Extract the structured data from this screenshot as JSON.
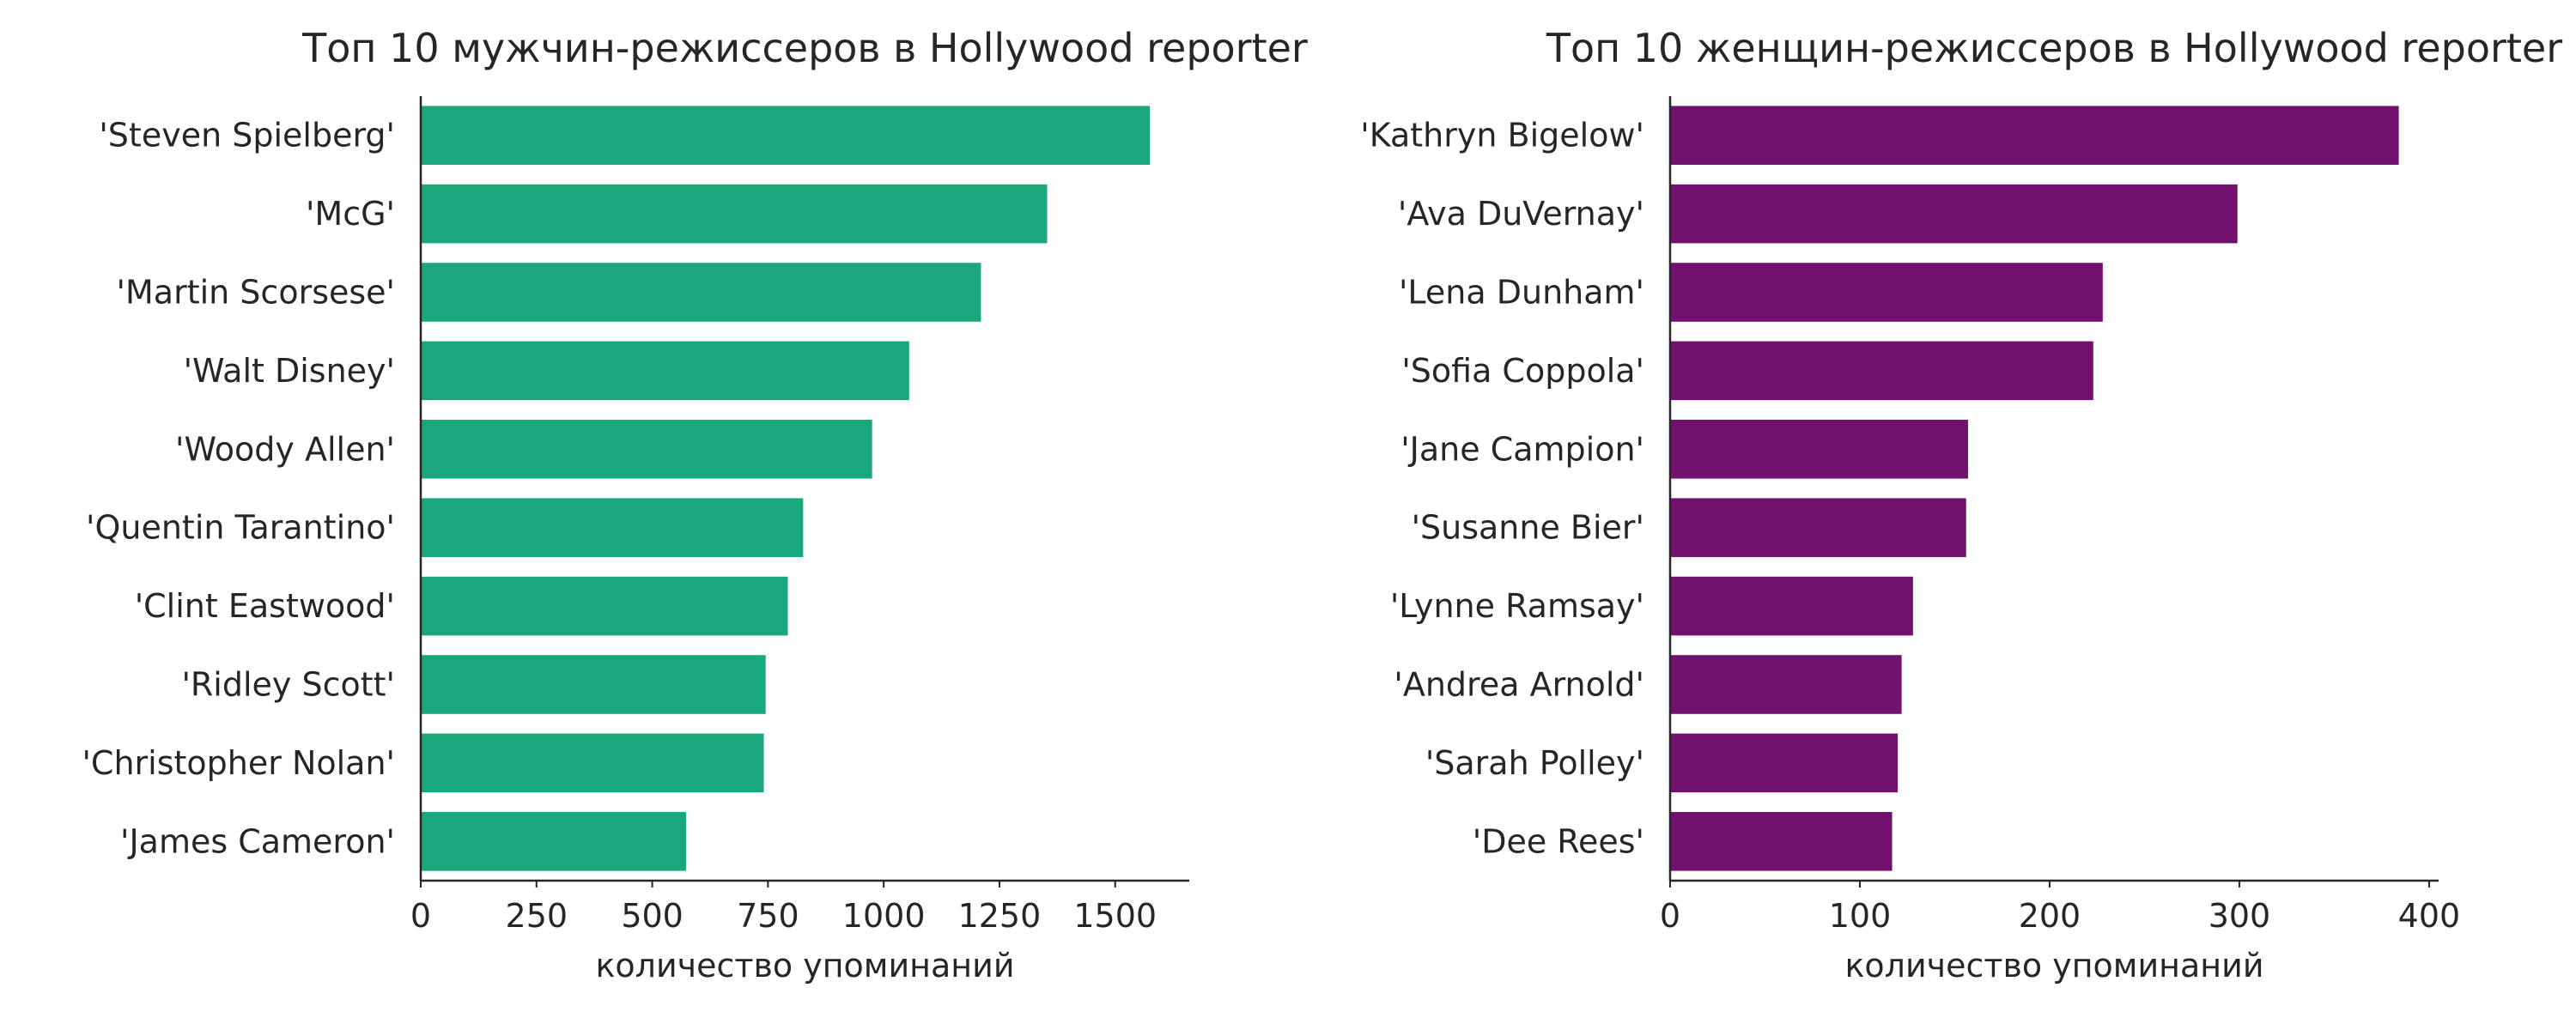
{
  "chart_data": [
    {
      "type": "bar",
      "orientation": "horizontal",
      "title": "Топ 10 мужчин-режиссеров в Hollywood reporter",
      "xlabel": "количество упоминаний",
      "ylabel": "",
      "categories": [
        "'Steven Spielberg'",
        "'McG'",
        "'Martin Scorsese'",
        "'Walt Disney'",
        "'Woody Allen'",
        "'Quentin Tarantino'",
        "'Clint Eastwood'",
        "'Ridley Scott'",
        "'Christopher Nolan'",
        "'James Cameron'"
      ],
      "values": [
        1575,
        1353,
        1210,
        1055,
        975,
        826,
        793,
        745,
        741,
        573
      ],
      "xlim": [
        0,
        1660
      ],
      "xticks": [
        0,
        250,
        500,
        750,
        1000,
        1250,
        1500
      ],
      "xtick_labels": [
        "0",
        "250",
        "500",
        "750",
        "1000",
        "1250",
        "1500"
      ],
      "color": "#1aa77c",
      "grid": false
    },
    {
      "type": "bar",
      "orientation": "horizontal",
      "title": "Топ 10 женщин-режиссеров в Hollywood reporter",
      "xlabel": "количество упоминаний",
      "ylabel": "",
      "categories": [
        "'Kathryn Bigelow'",
        "'Ava DuVernay'",
        "'Lena Dunham'",
        "'Sofia Coppola'",
        "'Jane Campion'",
        "'Susanne Bier'",
        "'Lynne Ramsay'",
        "'Andrea Arnold'",
        "'Sarah Polley'",
        "'Dee Rees'"
      ],
      "values": [
        384,
        299,
        228,
        223,
        157,
        156,
        128,
        122,
        120,
        117
      ],
      "xlim": [
        0,
        405
      ],
      "xticks": [
        0,
        100,
        200,
        300,
        400
      ],
      "xtick_labels": [
        "0",
        "100",
        "200",
        "300",
        "400"
      ],
      "color": "#72106e",
      "grid": false
    }
  ]
}
